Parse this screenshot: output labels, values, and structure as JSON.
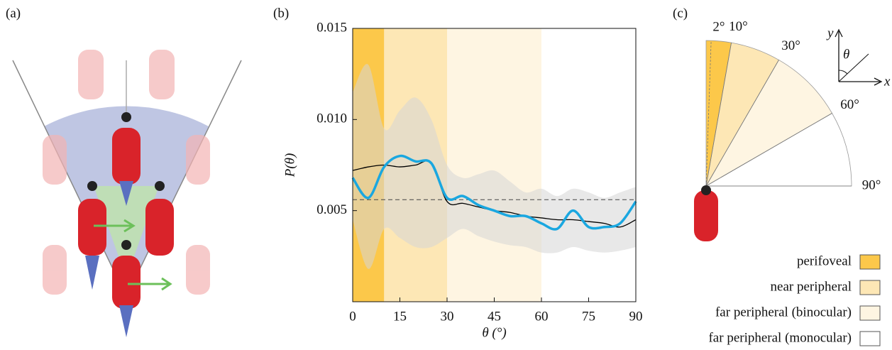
{
  "panel_labels": [
    "(a)",
    "(b)",
    "(c)"
  ],
  "chart_data": {
    "type": "line",
    "x_label": "θ (°)",
    "y_label": "P(θ)",
    "x": [
      0,
      5,
      10,
      15,
      20,
      25,
      30,
      35,
      40,
      45,
      50,
      55,
      60,
      65,
      70,
      75,
      80,
      85,
      90
    ],
    "xlim": [
      0,
      90
    ],
    "xticks": [
      0,
      15,
      30,
      45,
      60,
      75,
      90
    ],
    "ylim": [
      0,
      0.015
    ],
    "yticks": [
      0.005,
      {
        "value": 0.01,
        "label": "0.010"
      },
      0.015
    ],
    "regions": [
      {
        "name": "perifoveal",
        "range": [
          0,
          10
        ],
        "color": "#fcc84a"
      },
      {
        "name": "near peripheral",
        "range": [
          10,
          30
        ],
        "color": "#fde7b5"
      },
      {
        "name": "far peripheral (binocular)",
        "range": [
          30,
          60
        ],
        "color": "#fef5e2"
      },
      {
        "name": "far peripheral (monocular)",
        "range": [
          60,
          90
        ],
        "color": "#ffffff"
      }
    ],
    "band": {
      "color": "#d6d6d6",
      "upper": [
        0.0115,
        0.013,
        0.0095,
        0.0105,
        0.0112,
        0.01,
        0.0075,
        0.0068,
        0.007,
        0.0072,
        0.0066,
        0.006,
        0.0062,
        0.0058,
        0.0062,
        0.006,
        0.0057,
        0.006,
        0.0063
      ],
      "lower": [
        0.0045,
        0.0018,
        0.004,
        0.0035,
        0.003,
        0.003,
        0.0035,
        0.004,
        0.0036,
        0.0033,
        0.0031,
        0.003,
        0.0027,
        0.0027,
        0.003,
        0.0028,
        0.0027,
        0.0028,
        0.003
      ]
    },
    "reference": 0.0056,
    "series": [
      {
        "color": "#000000",
        "values": [
          0.0072,
          0.0074,
          0.0075,
          0.0074,
          0.0075,
          0.0076,
          0.0055,
          0.0054,
          0.0052,
          0.005,
          0.0049,
          0.0047,
          0.0046,
          0.0045,
          0.0045,
          0.0044,
          0.0043,
          0.0041,
          0.0045
        ]
      },
      {
        "color": "#1aa7e0",
        "values": [
          0.0068,
          0.0057,
          0.0074,
          0.008,
          0.0077,
          0.0076,
          0.0057,
          0.0058,
          0.0053,
          0.005,
          0.0047,
          0.0047,
          0.0043,
          0.004,
          0.005,
          0.0041,
          0.0041,
          0.0043,
          0.0055
        ]
      }
    ]
  },
  "panel_c": {
    "angle_labels": [
      {
        "value": 2,
        "label": "2°"
      },
      {
        "value": 10,
        "label": "10°"
      },
      {
        "value": 30,
        "label": "30°"
      },
      {
        "value": 60,
        "label": "60°"
      },
      {
        "value": 90,
        "label": "90°"
      }
    ],
    "axis_x": "x",
    "axis_y": "y",
    "angle_symbol": "θ"
  }
}
